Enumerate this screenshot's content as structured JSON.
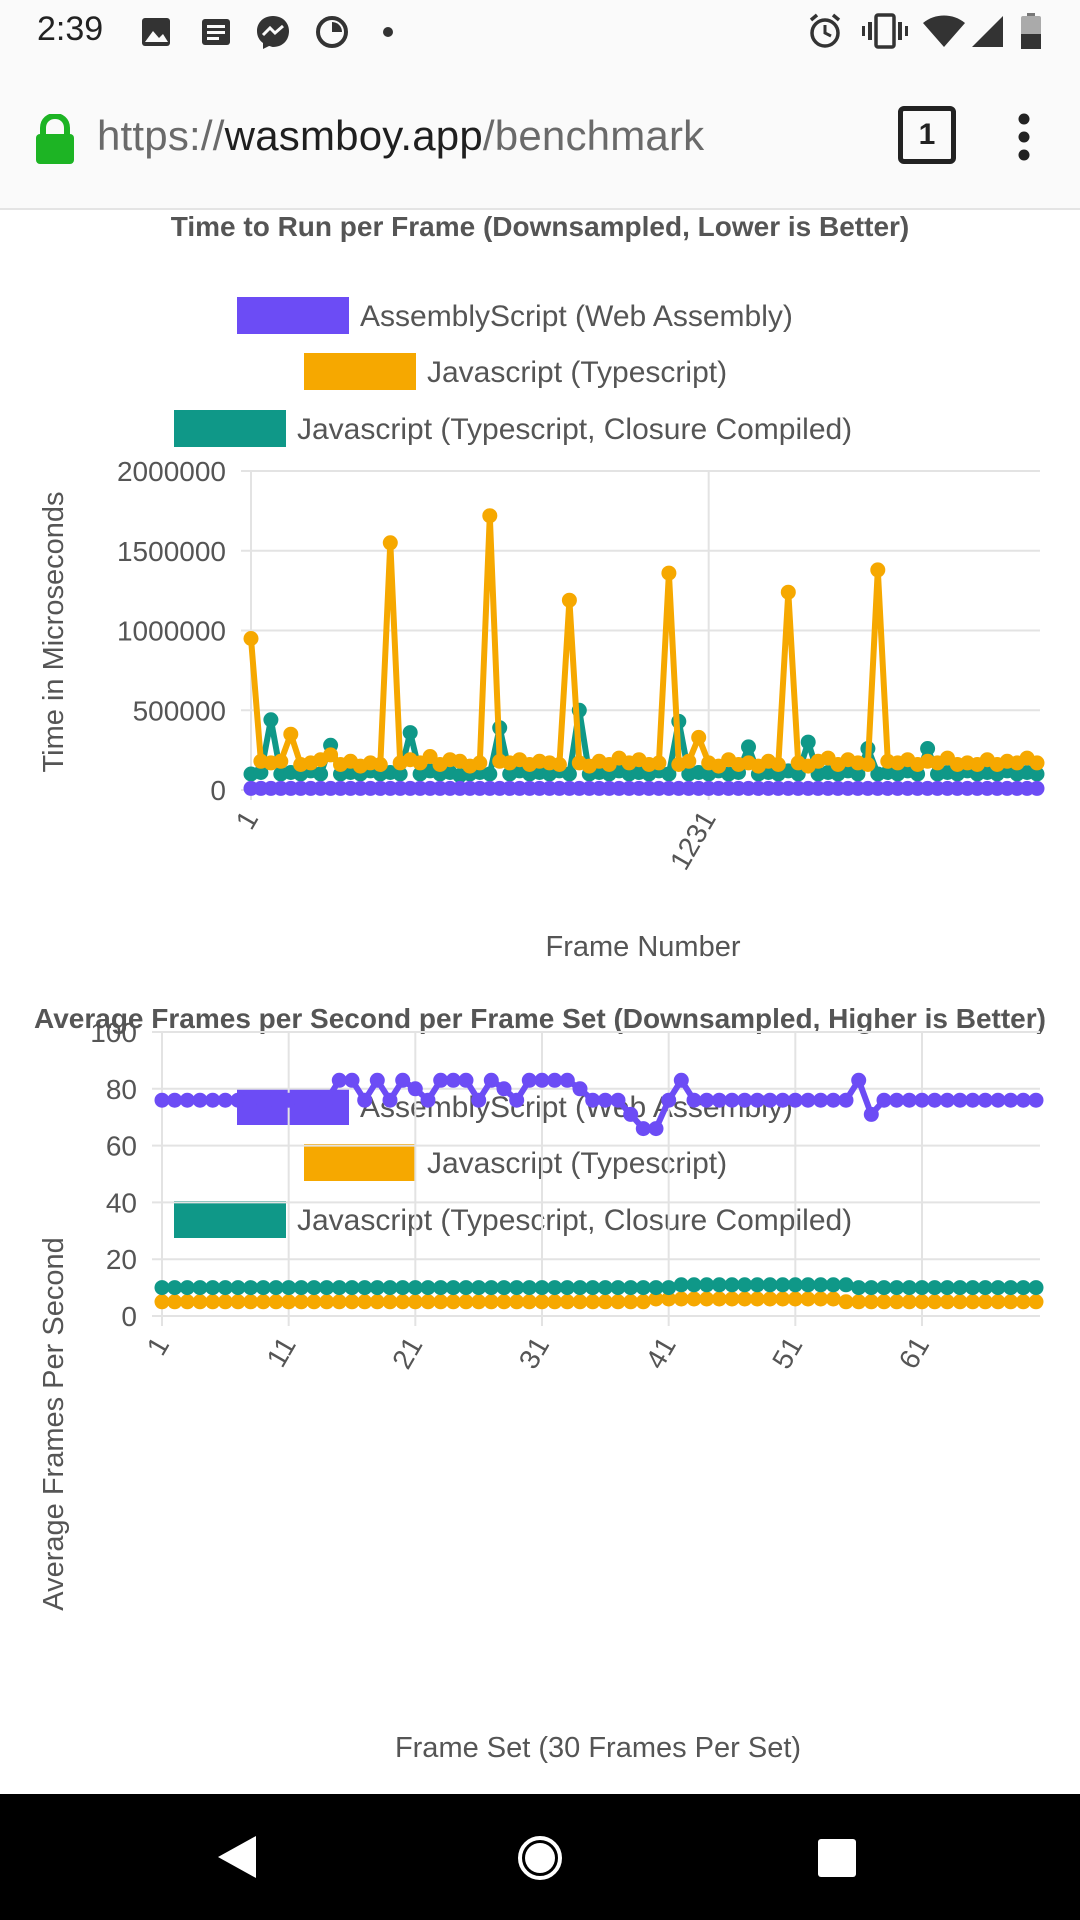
{
  "status_bar": {
    "time": "2:39",
    "left_icons": [
      "image-icon",
      "news-icon",
      "messenger-icon",
      "data-saver-icon",
      "dot-icon"
    ],
    "right_icons": [
      "alarm-icon",
      "vibrate-icon",
      "wifi-icon",
      "signal-icon",
      "battery-icon"
    ]
  },
  "url_bar": {
    "scheme": "https://",
    "domain": "wasmboy.app",
    "path": "/benchmark",
    "tab_count": "1",
    "colors": {
      "lock": "#1db424"
    }
  },
  "colors": {
    "assemblyscript": "#6c4cf5",
    "javascript": "#f6a800",
    "closure": "#0f9888",
    "grid": "#e3e3e3"
  },
  "chart_data": [
    {
      "type": "line",
      "title": "Time to Run per Frame (Downsampled, Lower is Better)",
      "xlabel": "Frame Number",
      "ylabel": "Time in Microseconds",
      "ylim": [
        0,
        2000000
      ],
      "y_ticks": [
        "0",
        "500000",
        "1000000",
        "1500000",
        "2000000"
      ],
      "x_ticks": [
        "1",
        "1231"
      ],
      "legend": "top",
      "grid": true,
      "series": [
        {
          "name": "AssemblyScript (Web Assembly)",
          "color": "#6c4cf5",
          "values": [
            10000,
            10000,
            10000,
            10000,
            10000,
            10000,
            10000,
            10000,
            10000,
            10000,
            10000,
            10000,
            10000,
            10000,
            10000,
            10000,
            10000,
            10000,
            10000,
            10000,
            10000,
            10000,
            10000,
            10000,
            10000,
            10000,
            10000,
            10000,
            10000,
            10000,
            10000,
            10000,
            10000,
            10000,
            10000,
            10000,
            10000,
            10000,
            10000,
            10000,
            10000,
            10000,
            10000,
            10000,
            10000,
            10000,
            10000,
            10000,
            10000,
            10000,
            10000,
            10000,
            10000,
            10000,
            10000,
            10000,
            10000,
            10000,
            10000,
            10000,
            10000,
            10000,
            10000,
            10000,
            10000,
            10000,
            10000,
            10000,
            10000,
            10000,
            10000,
            10000,
            10000,
            10000,
            10000,
            10000,
            10000,
            10000,
            10000,
            10000
          ]
        },
        {
          "name": "Javascript (Typescript)",
          "color": "#f6a800",
          "values": [
            950000,
            180000,
            170000,
            180000,
            350000,
            160000,
            170000,
            190000,
            220000,
            160000,
            180000,
            150000,
            170000,
            160000,
            1550000,
            170000,
            190000,
            170000,
            210000,
            160000,
            190000,
            180000,
            150000,
            170000,
            1720000,
            180000,
            170000,
            190000,
            160000,
            180000,
            170000,
            160000,
            1190000,
            170000,
            150000,
            180000,
            160000,
            200000,
            170000,
            190000,
            160000,
            170000,
            1360000,
            160000,
            180000,
            330000,
            170000,
            150000,
            190000,
            160000,
            170000,
            150000,
            180000,
            160000,
            1240000,
            170000,
            150000,
            180000,
            200000,
            160000,
            190000,
            170000,
            160000,
            1380000,
            180000,
            170000,
            190000,
            160000,
            180000,
            170000,
            200000,
            160000,
            170000,
            160000,
            190000,
            160000,
            180000,
            170000,
            200000,
            170000
          ],
          "peaks_pinned": true
        },
        {
          "name": "Javascript (Typescript, Closure Compiled)",
          "color": "#0f9888",
          "values": [
            100000,
            110000,
            440000,
            100000,
            110000,
            100000,
            120000,
            100000,
            280000,
            100000,
            110000,
            100000,
            120000,
            100000,
            110000,
            100000,
            360000,
            100000,
            120000,
            100000,
            110000,
            90000,
            100000,
            110000,
            100000,
            390000,
            100000,
            120000,
            100000,
            110000,
            100000,
            120000,
            100000,
            500000,
            100000,
            110000,
            100000,
            120000,
            100000,
            110000,
            100000,
            120000,
            100000,
            430000,
            100000,
            110000,
            100000,
            120000,
            100000,
            110000,
            270000,
            100000,
            110000,
            100000,
            120000,
            100000,
            300000,
            100000,
            110000,
            100000,
            120000,
            100000,
            260000,
            100000,
            110000,
            100000,
            120000,
            100000,
            260000,
            100000,
            110000,
            100000,
            120000,
            100000,
            110000,
            100000,
            120000,
            100000,
            110000,
            100000
          ]
        }
      ]
    },
    {
      "type": "line",
      "title": "Average Frames per Second per Frame Set (Downsampled, Higher is Better)",
      "xlabel": "Frame Set (30 Frames Per Set)",
      "ylabel": "Average Frames Per Second",
      "ylim": [
        0,
        100
      ],
      "y_ticks": [
        "0",
        "20",
        "40",
        "60",
        "80",
        "100"
      ],
      "x_ticks": [
        "1",
        "11",
        "21",
        "31",
        "41",
        "51",
        "61"
      ],
      "legend": "top",
      "grid": true,
      "series": [
        {
          "name": "AssemblyScript (Web Assembly)",
          "color": "#6c4cf5",
          "values": [
            76,
            76,
            76,
            76,
            76,
            76,
            76,
            76,
            76,
            76,
            76,
            76,
            76,
            76,
            83,
            83,
            76,
            83,
            76,
            83,
            80,
            76,
            83,
            83,
            83,
            76,
            83,
            80,
            76,
            83,
            83,
            83,
            83,
            80,
            76,
            76,
            76,
            71,
            66,
            66,
            76,
            83,
            76,
            76,
            76,
            76,
            76,
            76,
            76,
            76,
            76,
            76,
            76,
            76,
            76,
            83,
            71,
            76,
            76,
            76,
            76,
            76,
            76,
            76,
            76,
            76,
            76,
            76,
            76,
            76
          ]
        },
        {
          "name": "Javascript (Typescript)",
          "color": "#f6a800",
          "values": [
            5,
            5,
            5,
            5,
            5,
            5,
            5,
            5,
            5,
            5,
            5,
            5,
            5,
            5,
            5,
            5,
            5,
            5,
            5,
            5,
            5,
            5,
            5,
            5,
            5,
            5,
            5,
            5,
            5,
            5,
            5,
            5,
            5,
            5,
            5,
            5,
            5,
            5,
            5,
            6,
            6,
            6,
            6,
            6,
            6,
            6,
            6,
            6,
            6,
            6,
            6,
            6,
            6,
            6,
            5,
            5,
            5,
            5,
            5,
            5,
            5,
            5,
            5,
            5,
            5,
            5,
            5,
            5,
            5,
            5
          ]
        },
        {
          "name": "Javascript (Typescript, Closure Compiled)",
          "color": "#0f9888",
          "values": [
            10,
            10,
            10,
            10,
            10,
            10,
            10,
            10,
            10,
            10,
            10,
            10,
            10,
            10,
            10,
            10,
            10,
            10,
            10,
            10,
            10,
            10,
            10,
            10,
            10,
            10,
            10,
            10,
            10,
            10,
            10,
            10,
            10,
            10,
            10,
            10,
            10,
            10,
            10,
            10,
            10,
            11,
            11,
            11,
            11,
            11,
            11,
            11,
            11,
            11,
            11,
            11,
            11,
            11,
            11,
            10,
            10,
            10,
            10,
            10,
            10,
            10,
            10,
            10,
            10,
            10,
            10,
            10,
            10,
            10
          ]
        }
      ]
    }
  ]
}
